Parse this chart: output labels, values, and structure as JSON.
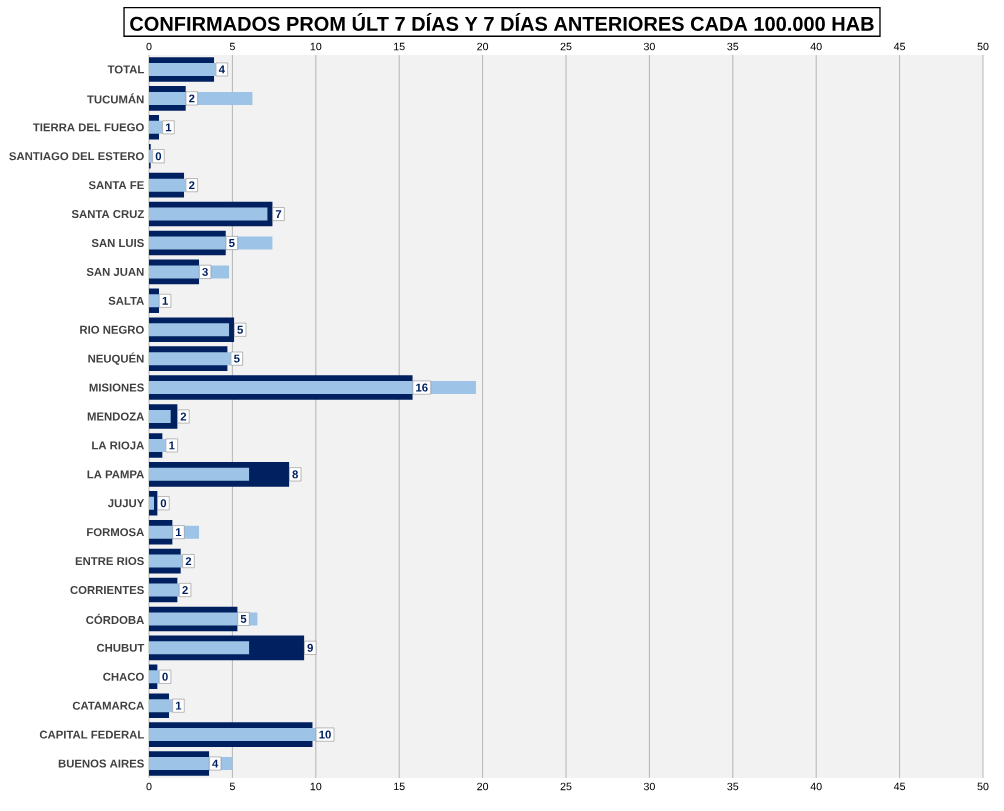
{
  "chart_data": {
    "type": "bar",
    "orientation": "horizontal",
    "title": "CONFIRMADOS PROM ÚLT 7 DÍAS Y 7 DÍAS ANTERIORES CADA 100.000 HAB",
    "categories": [
      "TOTAL",
      "TUCUMÁN",
      "TIERRA  DEL FUEGO",
      "SANTIAGO  DEL ESTERO",
      "SANTA  FE",
      "SANTA  CRUZ",
      "SAN LUIS",
      "SAN JUAN",
      "SALTA",
      "RIO  NEGRO",
      "NEUQUÉN",
      "MISIONES",
      "MENDOZA",
      "LA RIOJA",
      "LA PAMPA",
      "JUJUY",
      "FORMOSA",
      "ENTRE  RIOS",
      "CORRIENTES",
      "CÓRDOBA",
      "CHUBUT",
      "CHACO",
      "CATAMARCA",
      "CAPITAL  FEDERAL",
      "BUENOS  AIRES"
    ],
    "series": [
      {
        "color": "#002060",
        "values": [
          3.9,
          2.2,
          0.6,
          0.1,
          2.1,
          7.4,
          4.6,
          3.0,
          0.6,
          5.1,
          4.7,
          15.8,
          1.7,
          0.8,
          8.4,
          0.5,
          1.4,
          1.9,
          1.7,
          5.3,
          9.3,
          0.5,
          1.2,
          9.8,
          3.6
        ],
        "value_labels": [
          "4",
          "2",
          "1",
          "0",
          "2",
          "7",
          "5",
          "3",
          "1",
          "5",
          "5",
          "16",
          "2",
          "1",
          "8",
          "0",
          "1",
          "2",
          "2",
          "5",
          "9",
          "0",
          "1",
          "10",
          "4"
        ]
      },
      {
        "color": "#9dc3e6",
        "values": [
          4.0,
          6.2,
          0.8,
          0.2,
          2.2,
          7.1,
          7.4,
          4.8,
          0.6,
          4.8,
          4.9,
          19.6,
          1.3,
          1.0,
          6.0,
          0.3,
          3.0,
          2.0,
          1.8,
          6.5,
          6.0,
          0.6,
          1.4,
          10.0,
          5.0
        ]
      }
    ],
    "xlim": [
      0,
      50
    ],
    "xticks": [
      0,
      5,
      10,
      15,
      20,
      25,
      30,
      35,
      40,
      45,
      50
    ],
    "x2lim": [
      0,
      50
    ],
    "x2ticks": [
      0,
      5,
      10,
      15,
      20,
      25,
      30,
      35,
      40,
      45,
      50
    ],
    "grid": "x"
  }
}
